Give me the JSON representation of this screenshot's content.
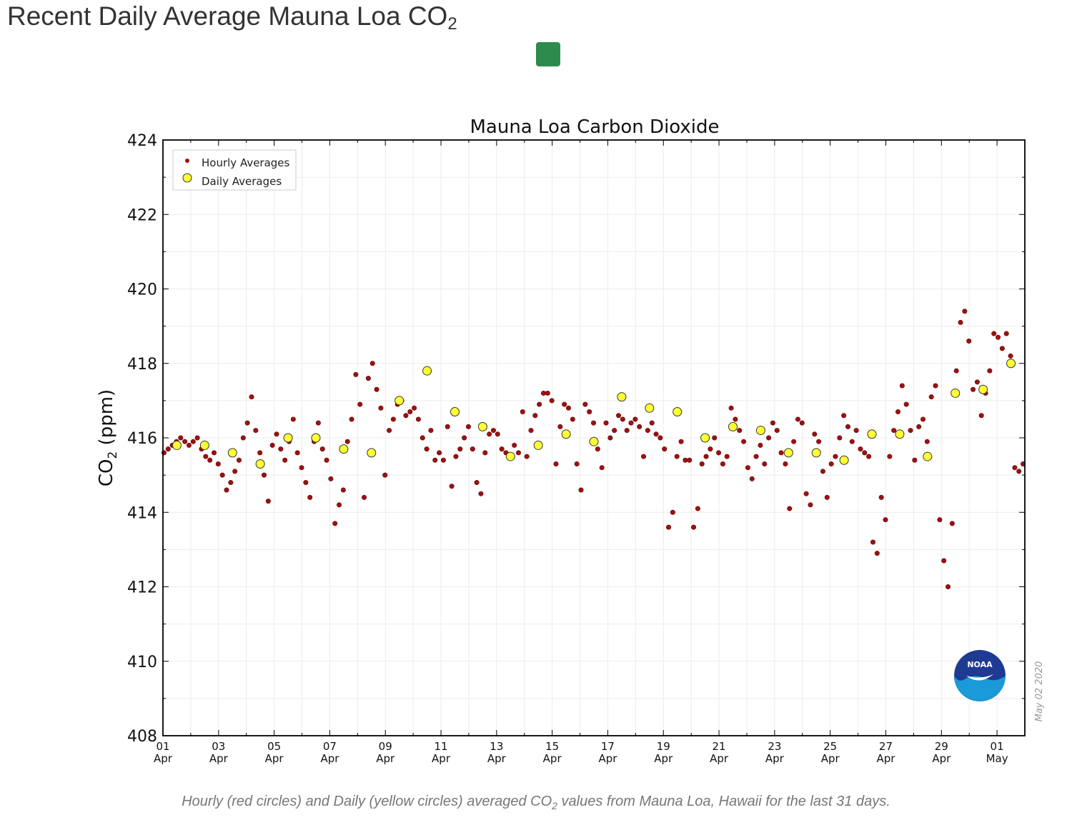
{
  "page": {
    "title_main": "Recent Daily Average Mauna Loa CO",
    "title_sub": "2",
    "caption_part1": "Hourly (red circles) and Daily (yellow circles) averaged CO",
    "caption_sub": "2",
    "caption_part2": " values from Mauna Loa, Hawaii for the last 31 days."
  },
  "colors": {
    "hourly": "#a01010",
    "daily": "#ffff33",
    "accent_square": "#2e8b4e"
  },
  "chart_data": {
    "type": "scatter",
    "title": "Mauna Loa Carbon Dioxide",
    "ylabel_main": "CO",
    "ylabel_sub": "2",
    "ylabel_unit": " (ppm)",
    "xlabel": "",
    "xlim_days": [
      0,
      31
    ],
    "ylim": [
      408,
      424
    ],
    "yticks": [
      408,
      410,
      412,
      414,
      416,
      418,
      420,
      422,
      424
    ],
    "xticks": [
      {
        "day": 0,
        "top": "01",
        "bottom": "Apr"
      },
      {
        "day": 2,
        "top": "03",
        "bottom": "Apr"
      },
      {
        "day": 4,
        "top": "05",
        "bottom": "Apr"
      },
      {
        "day": 6,
        "top": "07",
        "bottom": "Apr"
      },
      {
        "day": 8,
        "top": "09",
        "bottom": "Apr"
      },
      {
        "day": 10,
        "top": "11",
        "bottom": "Apr"
      },
      {
        "day": 12,
        "top": "13",
        "bottom": "Apr"
      },
      {
        "day": 14,
        "top": "15",
        "bottom": "Apr"
      },
      {
        "day": 16,
        "top": "17",
        "bottom": "Apr"
      },
      {
        "day": 18,
        "top": "19",
        "bottom": "Apr"
      },
      {
        "day": 20,
        "top": "21",
        "bottom": "Apr"
      },
      {
        "day": 22,
        "top": "23",
        "bottom": "Apr"
      },
      {
        "day": 24,
        "top": "25",
        "bottom": "Apr"
      },
      {
        "day": 26,
        "top": "27",
        "bottom": "Apr"
      },
      {
        "day": 28,
        "top": "29",
        "bottom": "Apr"
      },
      {
        "day": 30,
        "top": "01",
        "bottom": "May"
      }
    ],
    "legend": {
      "position": "top-left",
      "entries": [
        "Hourly Averages",
        "Daily Averages"
      ]
    },
    "watermark": "May 02 2020",
    "logo_text": "NOAA",
    "grid": true,
    "series": [
      {
        "name": "Daily Averages",
        "x_day": [
          0.5,
          1.5,
          2.5,
          3.5,
          4.5,
          5.5,
          6.5,
          7.5,
          8.5,
          9.5,
          10.5,
          11.5,
          12.5,
          13.5,
          14.5,
          15.5,
          16.5,
          17.5,
          18.5,
          19.5,
          20.5,
          21.5,
          22.5,
          23.5,
          24.5,
          25.5,
          26.5,
          27.5,
          28.5,
          29.5,
          30.5
        ],
        "values": [
          415.8,
          415.8,
          415.6,
          415.3,
          416.0,
          416.0,
          415.7,
          415.6,
          417.0,
          417.8,
          416.7,
          416.3,
          415.5,
          415.8,
          416.1,
          415.9,
          417.1,
          416.8,
          416.7,
          416.0,
          416.3,
          416.2,
          415.6,
          415.6,
          415.4,
          416.1,
          416.1,
          415.5,
          417.2,
          417.3,
          418.0
        ]
      },
      {
        "name": "Hourly Averages",
        "points": [
          [
            0.05,
            415.6
          ],
          [
            0.25,
            415.7
          ],
          [
            0.45,
            415.8
          ],
          [
            0.65,
            415.9
          ],
          [
            0.85,
            416.0
          ],
          [
            1.05,
            415.9
          ],
          [
            1.25,
            415.8
          ],
          [
            1.45,
            415.9
          ],
          [
            1.65,
            416.0
          ],
          [
            1.85,
            415.7
          ],
          [
            2.05,
            415.5
          ],
          [
            2.25,
            415.4
          ],
          [
            2.45,
            415.6
          ],
          [
            2.65,
            415.3
          ],
          [
            2.85,
            415.0
          ],
          [
            3.05,
            414.6
          ],
          [
            3.25,
            414.8
          ],
          [
            3.45,
            415.1
          ],
          [
            3.65,
            415.4
          ],
          [
            3.85,
            416.0
          ],
          [
            4.05,
            416.4
          ],
          [
            4.25,
            417.1
          ],
          [
            4.45,
            416.2
          ],
          [
            4.65,
            415.6
          ],
          [
            4.85,
            415.0
          ],
          [
            5.05,
            414.3
          ],
          [
            5.25,
            415.8
          ],
          [
            5.45,
            416.1
          ],
          [
            5.65,
            415.7
          ],
          [
            5.85,
            415.4
          ],
          [
            6.05,
            415.9
          ],
          [
            6.25,
            416.5
          ],
          [
            6.45,
            415.6
          ],
          [
            6.65,
            415.2
          ],
          [
            6.85,
            414.8
          ],
          [
            7.05,
            414.4
          ],
          [
            7.25,
            415.9
          ],
          [
            7.45,
            416.4
          ],
          [
            7.65,
            415.7
          ],
          [
            7.85,
            415.4
          ],
          [
            8.05,
            414.9
          ],
          [
            8.25,
            413.7
          ],
          [
            8.45,
            414.2
          ],
          [
            8.65,
            414.6
          ],
          [
            8.85,
            415.9
          ],
          [
            9.05,
            416.5
          ],
          [
            9.25,
            417.7
          ],
          [
            9.45,
            416.9
          ],
          [
            9.65,
            414.4
          ],
          [
            9.85,
            417.6
          ],
          [
            10.05,
            418.0
          ],
          [
            10.25,
            417.3
          ],
          [
            10.45,
            416.8
          ],
          [
            10.65,
            415.0
          ],
          [
            10.85,
            416.2
          ],
          [
            11.05,
            416.5
          ],
          [
            11.25,
            416.9
          ],
          [
            11.45,
            417.0
          ],
          [
            11.65,
            416.6
          ],
          [
            11.85,
            416.7
          ],
          [
            12.05,
            416.8
          ],
          [
            12.25,
            416.5
          ],
          [
            12.45,
            416.0
          ],
          [
            12.65,
            415.7
          ],
          [
            12.85,
            416.2
          ],
          [
            13.05,
            415.4
          ],
          [
            13.25,
            415.6
          ],
          [
            13.45,
            415.4
          ],
          [
            13.65,
            416.3
          ],
          [
            13.85,
            414.7
          ],
          [
            14.05,
            415.5
          ],
          [
            14.25,
            415.7
          ],
          [
            14.45,
            416.0
          ],
          [
            14.65,
            416.3
          ],
          [
            14.85,
            415.7
          ],
          [
            15.05,
            414.8
          ],
          [
            15.25,
            414.5
          ],
          [
            15.45,
            415.6
          ],
          [
            15.65,
            416.1
          ],
          [
            15.85,
            416.2
          ],
          [
            16.05,
            416.1
          ],
          [
            16.25,
            415.7
          ],
          [
            16.45,
            415.6
          ],
          [
            16.65,
            415.5
          ],
          [
            16.85,
            415.8
          ],
          [
            17.05,
            415.6
          ],
          [
            17.25,
            416.7
          ],
          [
            17.45,
            415.5
          ],
          [
            17.65,
            416.2
          ],
          [
            17.85,
            416.6
          ],
          [
            18.05,
            416.9
          ],
          [
            18.25,
            417.2
          ],
          [
            18.45,
            417.2
          ],
          [
            18.65,
            417.0
          ],
          [
            18.85,
            415.3
          ],
          [
            19.05,
            416.3
          ],
          [
            19.25,
            416.9
          ],
          [
            19.45,
            416.8
          ],
          [
            19.65,
            416.5
          ],
          [
            19.85,
            415.3
          ],
          [
            20.05,
            414.6
          ],
          [
            20.25,
            416.9
          ],
          [
            20.45,
            416.7
          ],
          [
            20.65,
            416.4
          ],
          [
            20.85,
            415.7
          ],
          [
            21.05,
            415.2
          ],
          [
            21.25,
            416.4
          ],
          [
            21.45,
            416.0
          ],
          [
            21.65,
            416.2
          ],
          [
            21.85,
            416.6
          ],
          [
            22.05,
            416.5
          ],
          [
            22.25,
            416.2
          ],
          [
            22.45,
            416.4
          ],
          [
            22.65,
            416.5
          ],
          [
            22.85,
            416.3
          ],
          [
            23.05,
            415.5
          ],
          [
            23.25,
            416.2
          ],
          [
            23.45,
            416.4
          ],
          [
            23.65,
            416.1
          ],
          [
            23.85,
            416.0
          ],
          [
            24.05,
            415.7
          ],
          [
            24.25,
            413.6
          ],
          [
            24.45,
            414.0
          ],
          [
            24.65,
            415.5
          ],
          [
            24.85,
            415.9
          ],
          [
            25.05,
            415.4
          ],
          [
            25.25,
            415.4
          ],
          [
            25.45,
            413.6
          ],
          [
            25.65,
            414.1
          ],
          [
            25.85,
            415.3
          ],
          [
            26.05,
            415.5
          ],
          [
            26.25,
            415.7
          ],
          [
            26.45,
            416.0
          ],
          [
            26.65,
            415.6
          ],
          [
            26.85,
            415.3
          ],
          [
            27.05,
            415.5
          ],
          [
            27.25,
            416.8
          ],
          [
            27.45,
            416.5
          ],
          [
            27.65,
            416.2
          ],
          [
            27.85,
            415.9
          ],
          [
            28.05,
            415.2
          ],
          [
            28.25,
            414.9
          ],
          [
            28.45,
            415.5
          ],
          [
            28.65,
            415.8
          ],
          [
            28.85,
            415.3
          ],
          [
            29.05,
            416.0
          ],
          [
            29.25,
            416.4
          ],
          [
            29.45,
            416.2
          ],
          [
            29.65,
            415.6
          ],
          [
            29.85,
            415.3
          ],
          [
            30.05,
            414.1
          ],
          [
            30.25,
            415.9
          ],
          [
            30.45,
            416.5
          ],
          [
            30.65,
            416.4
          ],
          [
            30.85,
            414.5
          ],
          [
            31.05,
            414.2
          ],
          [
            31.25,
            416.1
          ],
          [
            31.45,
            415.9
          ],
          [
            31.65,
            415.1
          ],
          [
            31.85,
            414.4
          ],
          [
            32.05,
            415.3
          ],
          [
            32.25,
            415.5
          ],
          [
            32.45,
            416.0
          ],
          [
            32.65,
            416.6
          ],
          [
            32.85,
            416.3
          ],
          [
            33.05,
            415.9
          ],
          [
            33.25,
            416.2
          ],
          [
            33.45,
            415.7
          ],
          [
            33.65,
            415.6
          ],
          [
            33.85,
            415.5
          ],
          [
            34.05,
            413.2
          ],
          [
            34.25,
            412.9
          ],
          [
            34.45,
            414.4
          ],
          [
            34.65,
            413.8
          ],
          [
            34.85,
            415.5
          ],
          [
            35.05,
            416.2
          ],
          [
            35.25,
            416.7
          ],
          [
            35.45,
            417.4
          ],
          [
            35.65,
            416.9
          ],
          [
            35.85,
            416.2
          ],
          [
            36.05,
            415.4
          ],
          [
            36.25,
            416.3
          ],
          [
            36.45,
            416.5
          ],
          [
            36.65,
            415.9
          ],
          [
            36.85,
            417.1
          ],
          [
            37.05,
            417.4
          ],
          [
            37.25,
            413.8
          ],
          [
            37.45,
            412.7
          ],
          [
            37.65,
            412.0
          ],
          [
            37.85,
            413.7
          ],
          [
            38.05,
            417.8
          ],
          [
            38.25,
            419.1
          ],
          [
            38.45,
            419.4
          ],
          [
            38.65,
            418.6
          ],
          [
            38.85,
            417.3
          ],
          [
            39.05,
            417.5
          ],
          [
            39.25,
            416.6
          ],
          [
            39.45,
            417.2
          ],
          [
            39.65,
            417.8
          ],
          [
            39.85,
            418.8
          ],
          [
            40.05,
            418.7
          ],
          [
            40.25,
            418.4
          ],
          [
            40.45,
            418.8
          ],
          [
            40.65,
            418.2
          ],
          [
            40.85,
            415.2
          ],
          [
            41.05,
            415.1
          ],
          [
            41.25,
            415.3
          ],
          [
            41.45,
            415.5
          ],
          [
            41.65,
            415.7
          ],
          [
            41.85,
            415.6
          ]
        ]
      }
    ]
  }
}
